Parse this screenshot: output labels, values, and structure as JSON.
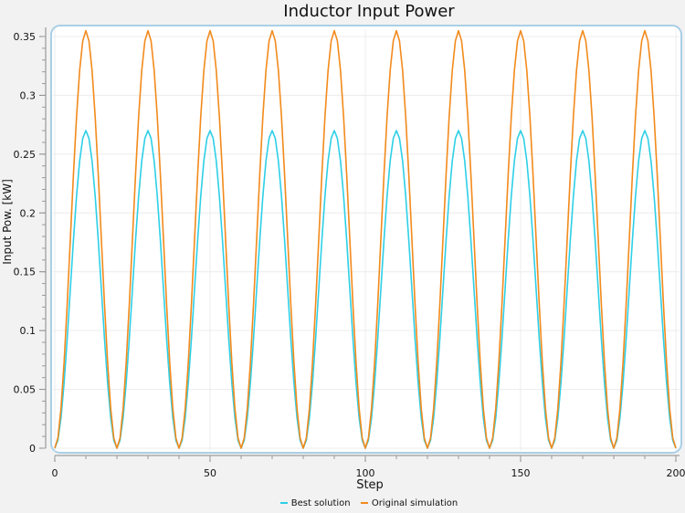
{
  "chart_data": {
    "type": "line",
    "title": "Inductor Input Power",
    "xlabel": "Step",
    "ylabel": "Input Pow. [kW]",
    "xlim": [
      0,
      200
    ],
    "ylim": [
      0,
      0.35
    ],
    "x_ticks": [
      "0",
      "50",
      "100",
      "150",
      "200"
    ],
    "y_ticks": [
      "0",
      "0.05",
      "0.1",
      "0.15",
      "0.2",
      "0.25",
      "0.3",
      "0.35"
    ],
    "grid": true,
    "legend_position": "bottom",
    "period_steps": 20,
    "series": [
      {
        "name": "Best solution",
        "color": "#2ecfe6",
        "peak": 0.27,
        "min": 0.0,
        "peaks_at": [
          10,
          30,
          50,
          70,
          90,
          110,
          130,
          150,
          170,
          190
        ],
        "troughs_at": [
          0,
          20,
          40,
          60,
          80,
          100,
          120,
          140,
          160,
          180,
          200
        ]
      },
      {
        "name": "Original simulation",
        "color": "#f28a1c",
        "peak": 0.355,
        "min": 0.0,
        "peaks_at": [
          10,
          30,
          50,
          70,
          90,
          110,
          130,
          150,
          170,
          190
        ],
        "troughs_at": [
          0,
          20,
          40,
          60,
          80,
          100,
          120,
          140,
          160,
          180,
          200
        ]
      }
    ]
  },
  "legend": {
    "items": [
      {
        "label": "Best solution",
        "color": "#2ecfe6"
      },
      {
        "label": "Original simulation",
        "color": "#f28a1c"
      }
    ]
  }
}
